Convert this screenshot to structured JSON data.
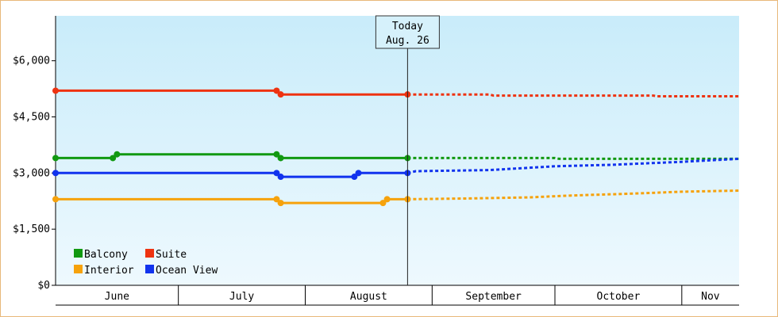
{
  "chart_data": {
    "type": "line",
    "today": {
      "title": "Today",
      "date_label": "Aug. 26",
      "date": "2023-08-26"
    },
    "x_range": [
      "2023-06-01",
      "2023-11-15"
    ],
    "months": [
      {
        "label": "June",
        "start": "2023-06-01",
        "end": "2023-07-01"
      },
      {
        "label": "July",
        "start": "2023-07-01",
        "end": "2023-08-01"
      },
      {
        "label": "August",
        "start": "2023-08-01",
        "end": "2023-09-01"
      },
      {
        "label": "September",
        "start": "2023-09-01",
        "end": "2023-10-01"
      },
      {
        "label": "October",
        "start": "2023-10-01",
        "end": "2023-11-01"
      },
      {
        "label": "Nov",
        "start": "2023-11-01",
        "end": "2023-11-15"
      }
    ],
    "ylim": [
      0,
      7200
    ],
    "yticks": [
      {
        "value": 0,
        "label": "$0"
      },
      {
        "value": 1500,
        "label": "$1,500"
      },
      {
        "value": 3000,
        "label": "$3,000"
      },
      {
        "value": 4500,
        "label": "$4,500"
      },
      {
        "value": 6000,
        "label": "$6,000"
      }
    ],
    "grid": false,
    "legend_position": "bottom-left",
    "series": [
      {
        "name": "Balcony",
        "color": "#119911",
        "actual": [
          [
            "2023-06-01",
            3400
          ],
          [
            "2023-06-15",
            3400
          ],
          [
            "2023-06-16",
            3500
          ],
          [
            "2023-07-25",
            3500
          ],
          [
            "2023-07-26",
            3400
          ],
          [
            "2023-08-26",
            3400
          ]
        ],
        "forecast": [
          [
            "2023-08-26",
            3400
          ],
          [
            "2023-10-01",
            3400
          ],
          [
            "2023-10-02",
            3380
          ],
          [
            "2023-11-15",
            3380
          ]
        ]
      },
      {
        "name": "Suite",
        "color": "#ee3311",
        "actual": [
          [
            "2023-06-01",
            5200
          ],
          [
            "2023-07-25",
            5200
          ],
          [
            "2023-07-26",
            5100
          ],
          [
            "2023-08-26",
            5100
          ]
        ],
        "forecast": [
          [
            "2023-08-26",
            5100
          ],
          [
            "2023-09-15",
            5100
          ],
          [
            "2023-09-16",
            5070
          ],
          [
            "2023-10-25",
            5070
          ],
          [
            "2023-10-26",
            5050
          ],
          [
            "2023-11-15",
            5050
          ]
        ]
      },
      {
        "name": "Interior",
        "color": "#f6a20c",
        "actual": [
          [
            "2023-06-01",
            2300
          ],
          [
            "2023-07-25",
            2300
          ],
          [
            "2023-07-26",
            2200
          ],
          [
            "2023-08-20",
            2200
          ],
          [
            "2023-08-21",
            2300
          ],
          [
            "2023-08-26",
            2300
          ]
        ],
        "forecast": [
          [
            "2023-08-26",
            2300
          ],
          [
            "2023-09-10",
            2320
          ],
          [
            "2023-09-25",
            2350
          ],
          [
            "2023-10-05",
            2400
          ],
          [
            "2023-10-20",
            2450
          ],
          [
            "2023-11-01",
            2500
          ],
          [
            "2023-11-15",
            2530
          ]
        ]
      },
      {
        "name": "Ocean View",
        "color": "#1133ee",
        "actual": [
          [
            "2023-06-01",
            3000
          ],
          [
            "2023-07-25",
            3000
          ],
          [
            "2023-07-26",
            2900
          ],
          [
            "2023-08-13",
            2900
          ],
          [
            "2023-08-14",
            3000
          ],
          [
            "2023-08-26",
            3000
          ]
        ],
        "forecast": [
          [
            "2023-08-26",
            3000
          ],
          [
            "2023-08-28",
            3050
          ],
          [
            "2023-09-15",
            3080
          ],
          [
            "2023-10-01",
            3180
          ],
          [
            "2023-10-15",
            3220
          ],
          [
            "2023-11-01",
            3300
          ],
          [
            "2023-11-15",
            3380
          ]
        ],
        "markers": [
          "2023-06-01",
          "2023-07-25",
          "2023-07-26",
          "2023-08-13",
          "2023-08-14",
          "2023-08-26"
        ]
      }
    ],
    "markers": {
      "Balcony": [
        "2023-06-01",
        "2023-06-15",
        "2023-06-16",
        "2023-07-25",
        "2023-07-26",
        "2023-08-26"
      ],
      "Suite": [
        "2023-06-01",
        "2023-07-25",
        "2023-07-26",
        "2023-08-26"
      ],
      "Interior": [
        "2023-06-01",
        "2023-07-25",
        "2023-07-26",
        "2023-08-20",
        "2023-08-21",
        "2023-08-26"
      ]
    }
  }
}
